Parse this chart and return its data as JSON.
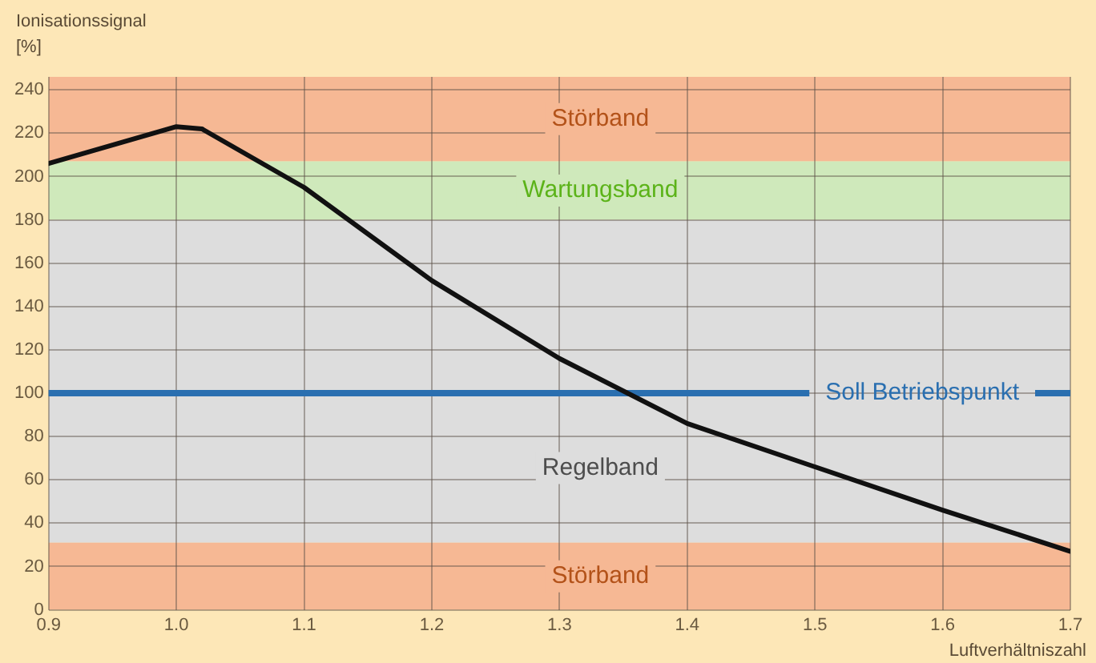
{
  "chart_data": {
    "type": "line",
    "ylabel": "Ionisationssignal [%]",
    "xlabel": "Luftverhältniszahl",
    "x": [
      0.9,
      1.0,
      1.02,
      1.1,
      1.2,
      1.3,
      1.4,
      1.5,
      1.6,
      1.7
    ],
    "series": [
      {
        "color": "#111111",
        "values": [
          206,
          223,
          222,
          195,
          152,
          116,
          86,
          66,
          46,
          27
        ]
      }
    ],
    "xlim": [
      0.9,
      1.7
    ],
    "xticks": [
      0.9,
      {
        "value": 1,
        "label": "1.0"
      },
      1.1,
      1.2,
      1.3,
      1.4,
      1.5,
      1.6,
      1.7
    ],
    "ylim": [
      0,
      246
    ],
    "yticks": [
      0,
      20,
      40,
      60,
      80,
      100,
      120,
      140,
      160,
      180,
      200,
      220,
      240
    ],
    "bands": [
      {
        "axis": "y",
        "from": 207,
        "to": 246,
        "label": "Störband",
        "color": "#f6b894"
      },
      {
        "axis": "y",
        "from": 180,
        "to": 207,
        "label": "Wartungsband",
        "color": "#cfe9bb"
      },
      {
        "axis": "y",
        "from": 31,
        "to": 180,
        "label": "Regelband",
        "color": "#dddddd"
      },
      {
        "axis": "y",
        "from": 0,
        "to": 31,
        "label": "Störband",
        "color": "#f6b894"
      }
    ],
    "ref_lines": [
      {
        "axis": "y",
        "value": 100,
        "label": "Soll Betriebspunkt",
        "color": "#2a6fb0",
        "line_style": "solid"
      }
    ],
    "grid": true,
    "legend": false,
    "marker": "none",
    "line_style": "solid"
  }
}
